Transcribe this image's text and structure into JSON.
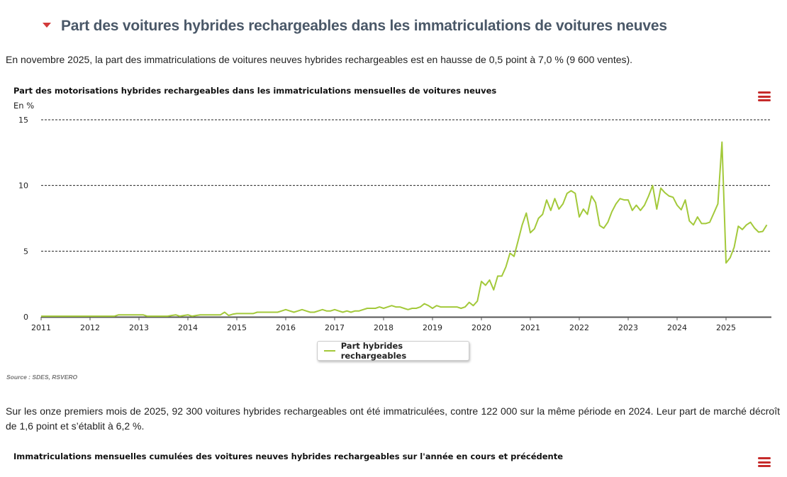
{
  "section": {
    "title": "Part des voitures hybrides rechargeables dans les immatriculations de voitures neuves",
    "intro": "En novembre 2025, la part des immatriculations de voitures neuves hybrides rechargeables est en hausse de 0,5 point à 7,0 % (9 600 ventes).",
    "paragraph2": "Sur les onze premiers mois de 2025, 92 300 voitures hybrides rechargeables ont été immatriculées, contre 122 000 sur la même période en 2024. Leur part de marché décroît de 1,6 point et s’établit à 6,2 %.",
    "source": "Source : SDES, RSVERO",
    "chart2_title": "Immatriculations mensuelles cumulées des voitures neuves hybrides rechargeables sur l'année en cours et précédente",
    "menu_icon": "hamburger-menu-icon",
    "accent_color": "#d23a3a"
  },
  "chart_data": {
    "type": "line",
    "title": "Part des motorisations hybrides rechargeables dans les immatriculations mensuelles de voitures neuves",
    "ylabel": "En %",
    "xlabel": "",
    "ylim": [
      0,
      15
    ],
    "yticks": [
      "0",
      "5",
      "10",
      "15"
    ],
    "yticks_values": [
      0,
      5,
      10,
      15
    ],
    "xticks": [
      "2011",
      "2012",
      "2013",
      "2014",
      "2015",
      "2016",
      "2017",
      "2018",
      "2019",
      "2020",
      "2021",
      "2022",
      "2023",
      "2024",
      "2025"
    ],
    "x_start": "2011-01",
    "x_end": "2025-11",
    "grid": true,
    "legend_position": "bottom-center",
    "series": [
      {
        "name": "Part hybrides rechargeables",
        "color": "#a3c93a",
        "values": [
          0.05,
          0.05,
          0.05,
          0.05,
          0.05,
          0.05,
          0.05,
          0.05,
          0.05,
          0.05,
          0.05,
          0.05,
          0.05,
          0.05,
          0.05,
          0.05,
          0.05,
          0.05,
          0.05,
          0.15,
          0.15,
          0.15,
          0.15,
          0.15,
          0.15,
          0.15,
          0.05,
          0.05,
          0.05,
          0.05,
          0.05,
          0.05,
          0.1,
          0.15,
          0.05,
          0.1,
          0.15,
          0.05,
          0.1,
          0.15,
          0.15,
          0.15,
          0.15,
          0.15,
          0.15,
          0.35,
          0.1,
          0.2,
          0.25,
          0.25,
          0.25,
          0.25,
          0.25,
          0.35,
          0.35,
          0.35,
          0.35,
          0.35,
          0.35,
          0.45,
          0.55,
          0.45,
          0.35,
          0.45,
          0.55,
          0.45,
          0.35,
          0.35,
          0.45,
          0.55,
          0.45,
          0.45,
          0.55,
          0.45,
          0.35,
          0.45,
          0.35,
          0.45,
          0.45,
          0.55,
          0.65,
          0.65,
          0.65,
          0.75,
          0.65,
          0.75,
          0.85,
          0.75,
          0.75,
          0.65,
          0.55,
          0.65,
          0.65,
          0.75,
          1.0,
          0.85,
          0.65,
          0.85,
          0.75,
          0.75,
          0.75,
          0.75,
          0.75,
          0.65,
          0.75,
          1.1,
          0.85,
          1.2,
          2.7,
          2.4,
          2.8,
          2.05,
          3.1,
          3.1,
          3.8,
          4.85,
          4.6,
          5.8,
          7.0,
          7.9,
          6.4,
          6.7,
          7.5,
          7.8,
          8.9,
          8.1,
          9.0,
          8.2,
          8.6,
          9.4,
          9.6,
          9.4,
          7.6,
          8.2,
          7.8,
          9.2,
          8.7,
          6.95,
          6.75,
          7.2,
          8.0,
          8.6,
          9.0,
          8.9,
          8.9,
          8.1,
          8.5,
          8.1,
          8.5,
          9.2,
          10.0,
          8.2,
          9.8,
          9.45,
          9.2,
          9.1,
          8.5,
          8.15,
          8.9,
          7.3,
          7.0,
          7.6,
          7.1,
          7.1,
          7.2,
          7.9,
          8.6,
          13.3,
          4.1,
          4.5,
          5.3,
          6.9,
          6.65,
          7.0,
          7.2,
          6.75,
          6.45,
          6.5,
          7.0
        ]
      }
    ]
  }
}
